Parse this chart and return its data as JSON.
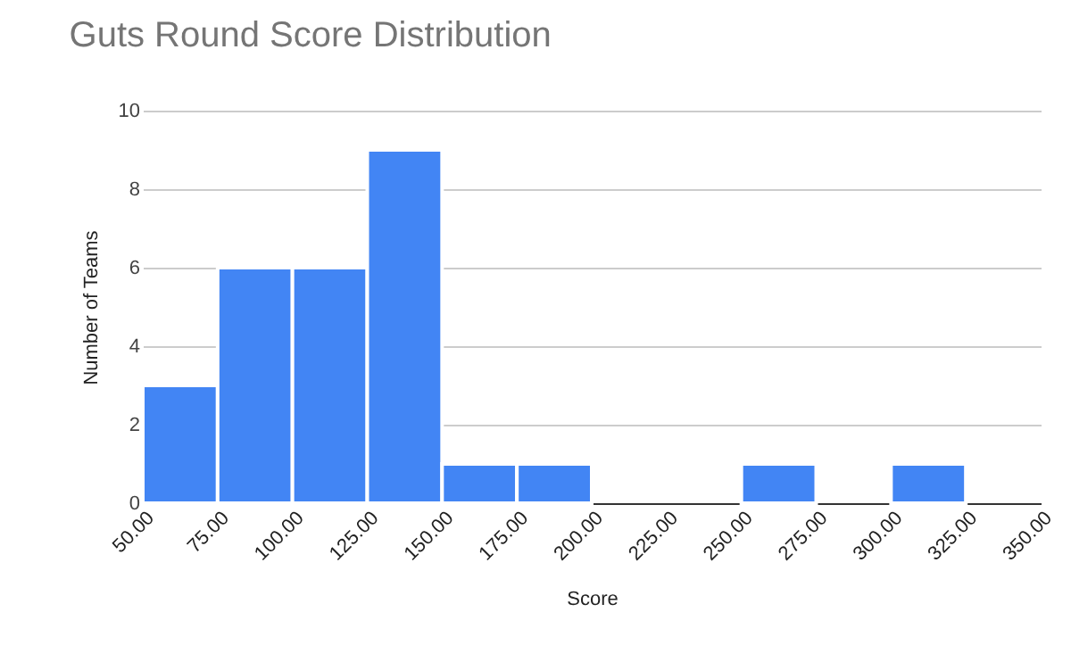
{
  "chart_data": {
    "type": "histogram",
    "title": "Guts Round Score Distribution",
    "xlabel": "Score",
    "ylabel": "Number of Teams",
    "bins": [
      50,
      75,
      100,
      125,
      150,
      175,
      200,
      225,
      250,
      275,
      300,
      325,
      350
    ],
    "values": [
      3,
      6,
      6,
      9,
      1,
      1,
      0,
      0,
      1,
      0,
      1,
      0
    ],
    "color": "#4285f4",
    "xlim": [
      50,
      350
    ],
    "xticks": [
      {
        "value": 50,
        "label": "50.00"
      },
      {
        "value": 75,
        "label": "75.00"
      },
      {
        "value": 100,
        "label": "100.00"
      },
      {
        "value": 125,
        "label": "125.00"
      },
      {
        "value": 150,
        "label": "150.00"
      },
      {
        "value": 175,
        "label": "175.00"
      },
      {
        "value": 200,
        "label": "200.00"
      },
      {
        "value": 225,
        "label": "225.00"
      },
      {
        "value": 250,
        "label": "250.00"
      },
      {
        "value": 275,
        "label": "275.00"
      },
      {
        "value": 300,
        "label": "300.00"
      },
      {
        "value": 325,
        "label": "325.00"
      },
      {
        "value": 350,
        "label": "350.00"
      }
    ],
    "ylim": [
      0,
      10
    ],
    "yticks": [
      0,
      2,
      4,
      6,
      8,
      10
    ],
    "grid": "y"
  }
}
